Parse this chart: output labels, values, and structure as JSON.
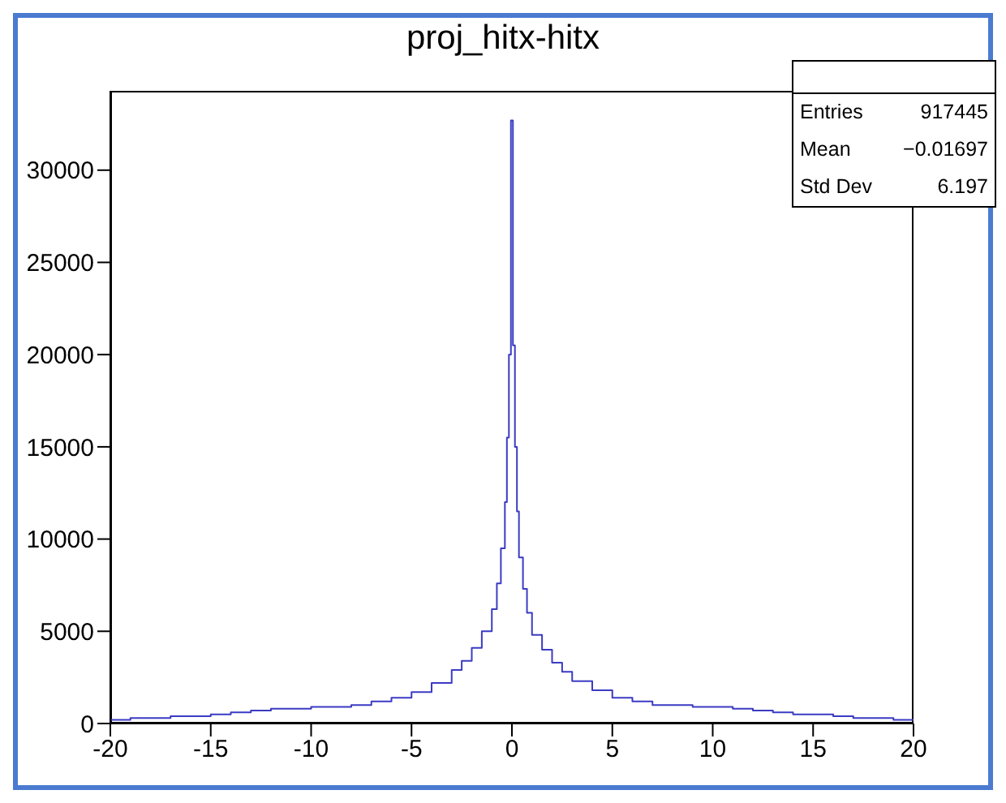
{
  "chart_data": {
    "type": "histogram",
    "title": "proj_hitx-hitx",
    "bins": [
      -20,
      -19,
      -18,
      -17,
      -16,
      -15,
      -14,
      -13,
      -12,
      -11,
      -10,
      -9,
      -8,
      -7,
      -6,
      -5,
      -4,
      -3,
      -2.5,
      -2,
      -1.5,
      -1,
      -0.75,
      -0.55,
      -0.35,
      -0.25,
      -0.15,
      -0.05,
      0.05,
      0.15,
      0.25,
      0.35,
      0.55,
      0.75,
      1,
      1.5,
      2,
      2.5,
      3,
      4,
      5,
      6,
      7,
      8,
      9,
      10,
      11,
      12,
      13,
      14,
      15,
      16,
      17,
      18,
      19,
      20
    ],
    "values": [
      200,
      300,
      300,
      400,
      400,
      500,
      600,
      700,
      800,
      800,
      900,
      900,
      1000,
      1200,
      1400,
      1700,
      2200,
      2900,
      3400,
      4100,
      5000,
      6200,
      7600,
      9500,
      12000,
      15500,
      20000,
      32700,
      20500,
      15000,
      11500,
      9000,
      7300,
      6000,
      4800,
      4000,
      3300,
      2800,
      2300,
      1800,
      1400,
      1200,
      1000,
      1000,
      900,
      900,
      800,
      700,
      600,
      500,
      500,
      400,
      300,
      300,
      200
    ],
    "color": "#3b3bc4",
    "xlim": [
      -20,
      20
    ],
    "xticks": [
      -20,
      -15,
      -10,
      -5,
      0,
      5,
      10,
      15,
      20
    ],
    "ylim": [
      0,
      34300
    ],
    "yticks": [
      0,
      5000,
      10000,
      15000,
      20000,
      25000,
      30000
    ],
    "annotations": [
      "Entries",
      "917445",
      "Mean",
      "−0.01697",
      "Std Dev",
      "6.197"
    ],
    "grid": false
  }
}
